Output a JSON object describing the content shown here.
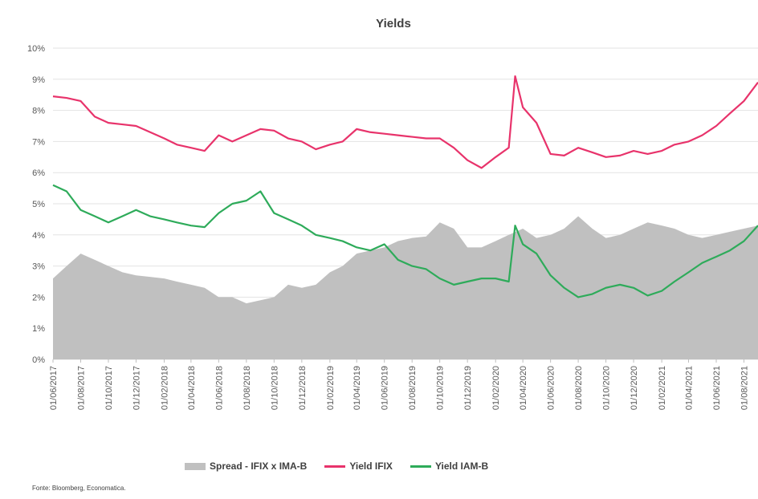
{
  "chart_data": {
    "type": "line",
    "title": "Yields",
    "ylim": [
      0,
      10
    ],
    "y_ticks": [
      "10%",
      "9%",
      "8%",
      "7%",
      "6%",
      "5%",
      "4%",
      "3%",
      "2%",
      "1%",
      "0%"
    ],
    "x_range": [
      "01/06/2017",
      "01/09/2021"
    ],
    "x_tick_labels": [
      "01/06/2017",
      "01/08/2017",
      "01/10/2017",
      "01/12/2017",
      "01/02/2018",
      "01/04/2018",
      "01/06/2018",
      "01/08/2018",
      "01/10/2018",
      "01/12/2018",
      "01/02/2019",
      "01/04/2019",
      "01/06/2019",
      "01/08/2019",
      "01/10/2019",
      "01/12/2019",
      "01/02/2020",
      "01/04/2020",
      "01/06/2020",
      "01/08/2020",
      "01/10/2020",
      "01/12/2020",
      "01/02/2021",
      "01/04/2021",
      "01/06/2021",
      "01/08/2021"
    ],
    "grid": true,
    "legend_position": "bottom",
    "series": [
      {
        "name": "Spread - IFIX x IMA-B",
        "kind": "area",
        "color": "#c0c0c0",
        "points": [
          [
            "01/06/2017",
            2.6
          ],
          [
            "01/07/2017",
            3.0
          ],
          [
            "01/08/2017",
            3.4
          ],
          [
            "01/09/2017",
            3.2
          ],
          [
            "01/10/2017",
            3.0
          ],
          [
            "01/11/2017",
            2.8
          ],
          [
            "01/12/2017",
            2.7
          ],
          [
            "01/01/2018",
            2.65
          ],
          [
            "01/02/2018",
            2.6
          ],
          [
            "01/03/2018",
            2.5
          ],
          [
            "01/04/2018",
            2.4
          ],
          [
            "01/05/2018",
            2.3
          ],
          [
            "01/06/2018",
            2.0
          ],
          [
            "01/07/2018",
            2.0
          ],
          [
            "01/08/2018",
            1.8
          ],
          [
            "01/09/2018",
            1.9
          ],
          [
            "01/10/2018",
            2.0
          ],
          [
            "01/11/2018",
            2.4
          ],
          [
            "01/12/2018",
            2.3
          ],
          [
            "01/01/2019",
            2.4
          ],
          [
            "01/02/2019",
            2.8
          ],
          [
            "01/03/2019",
            3.0
          ],
          [
            "01/04/2019",
            3.4
          ],
          [
            "01/05/2019",
            3.5
          ],
          [
            "01/06/2019",
            3.6
          ],
          [
            "01/07/2019",
            3.8
          ],
          [
            "01/08/2019",
            3.9
          ],
          [
            "01/09/2019",
            3.95
          ],
          [
            "01/10/2019",
            4.4
          ],
          [
            "01/11/2019",
            4.2
          ],
          [
            "01/12/2019",
            3.6
          ],
          [
            "01/01/2020",
            3.6
          ],
          [
            "01/02/2020",
            3.8
          ],
          [
            "01/03/2020",
            4.0
          ],
          [
            "01/04/2020",
            4.2
          ],
          [
            "01/05/2020",
            3.9
          ],
          [
            "01/06/2020",
            4.0
          ],
          [
            "01/07/2020",
            4.2
          ],
          [
            "01/08/2020",
            4.6
          ],
          [
            "01/09/2020",
            4.2
          ],
          [
            "01/10/2020",
            3.9
          ],
          [
            "01/11/2020",
            4.0
          ],
          [
            "01/12/2020",
            4.2
          ],
          [
            "01/01/2021",
            4.4
          ],
          [
            "01/02/2021",
            4.3
          ],
          [
            "01/03/2021",
            4.2
          ],
          [
            "01/04/2021",
            4.0
          ],
          [
            "01/05/2021",
            3.9
          ],
          [
            "01/06/2021",
            4.0
          ],
          [
            "01/07/2021",
            4.1
          ],
          [
            "01/08/2021",
            4.2
          ],
          [
            "01/09/2021",
            4.3
          ]
        ]
      },
      {
        "name": "Yield IFIX",
        "kind": "line",
        "color": "#e8336b",
        "points": [
          [
            "01/06/2017",
            8.45
          ],
          [
            "01/07/2017",
            8.4
          ],
          [
            "01/08/2017",
            8.3
          ],
          [
            "01/09/2017",
            7.8
          ],
          [
            "01/10/2017",
            7.6
          ],
          [
            "01/11/2017",
            7.55
          ],
          [
            "01/12/2017",
            7.5
          ],
          [
            "01/01/2018",
            7.3
          ],
          [
            "01/02/2018",
            7.1
          ],
          [
            "01/03/2018",
            6.9
          ],
          [
            "01/04/2018",
            6.8
          ],
          [
            "01/05/2018",
            6.7
          ],
          [
            "01/06/2018",
            7.2
          ],
          [
            "01/07/2018",
            7.0
          ],
          [
            "01/08/2018",
            7.2
          ],
          [
            "01/09/2018",
            7.4
          ],
          [
            "01/10/2018",
            7.35
          ],
          [
            "01/11/2018",
            7.1
          ],
          [
            "01/12/2018",
            7.0
          ],
          [
            "01/01/2019",
            6.75
          ],
          [
            "01/02/2019",
            6.9
          ],
          [
            "01/03/2019",
            7.0
          ],
          [
            "01/04/2019",
            7.4
          ],
          [
            "01/05/2019",
            7.3
          ],
          [
            "01/06/2019",
            7.25
          ],
          [
            "01/07/2019",
            7.2
          ],
          [
            "01/08/2019",
            7.15
          ],
          [
            "01/09/2019",
            7.1
          ],
          [
            "01/10/2019",
            7.1
          ],
          [
            "01/11/2019",
            6.8
          ],
          [
            "01/12/2019",
            6.4
          ],
          [
            "01/01/2020",
            6.15
          ],
          [
            "01/02/2020",
            6.5
          ],
          [
            "01/03/2020",
            6.8
          ],
          [
            "15/03/2020",
            9.1
          ],
          [
            "01/04/2020",
            8.1
          ],
          [
            "01/05/2020",
            7.6
          ],
          [
            "01/06/2020",
            6.6
          ],
          [
            "01/07/2020",
            6.55
          ],
          [
            "01/08/2020",
            6.8
          ],
          [
            "01/09/2020",
            6.65
          ],
          [
            "01/10/2020",
            6.5
          ],
          [
            "01/11/2020",
            6.55
          ],
          [
            "01/12/2020",
            6.7
          ],
          [
            "01/01/2021",
            6.6
          ],
          [
            "01/02/2021",
            6.7
          ],
          [
            "01/03/2021",
            6.9
          ],
          [
            "01/04/2021",
            7.0
          ],
          [
            "01/05/2021",
            7.2
          ],
          [
            "01/06/2021",
            7.5
          ],
          [
            "01/07/2021",
            7.9
          ],
          [
            "01/08/2021",
            8.3
          ],
          [
            "01/09/2021",
            8.9
          ]
        ]
      },
      {
        "name": "Yield IAM-B",
        "kind": "line",
        "color": "#2eab5a",
        "points": [
          [
            "01/06/2017",
            5.6
          ],
          [
            "01/07/2017",
            5.4
          ],
          [
            "01/08/2017",
            4.8
          ],
          [
            "01/09/2017",
            4.6
          ],
          [
            "01/10/2017",
            4.4
          ],
          [
            "01/11/2017",
            4.6
          ],
          [
            "01/12/2017",
            4.8
          ],
          [
            "01/01/2018",
            4.6
          ],
          [
            "01/02/2018",
            4.5
          ],
          [
            "01/03/2018",
            4.4
          ],
          [
            "01/04/2018",
            4.3
          ],
          [
            "01/05/2018",
            4.25
          ],
          [
            "01/06/2018",
            4.7
          ],
          [
            "01/07/2018",
            5.0
          ],
          [
            "01/08/2018",
            5.1
          ],
          [
            "01/09/2018",
            5.4
          ],
          [
            "01/10/2018",
            4.7
          ],
          [
            "01/11/2018",
            4.5
          ],
          [
            "01/12/2018",
            4.3
          ],
          [
            "01/01/2019",
            4.0
          ],
          [
            "01/02/2019",
            3.9
          ],
          [
            "01/03/2019",
            3.8
          ],
          [
            "01/04/2019",
            3.6
          ],
          [
            "01/05/2019",
            3.5
          ],
          [
            "01/06/2019",
            3.7
          ],
          [
            "01/07/2019",
            3.2
          ],
          [
            "01/08/2019",
            3.0
          ],
          [
            "01/09/2019",
            2.9
          ],
          [
            "01/10/2019",
            2.6
          ],
          [
            "01/11/2019",
            2.4
          ],
          [
            "01/12/2019",
            2.5
          ],
          [
            "01/01/2020",
            2.6
          ],
          [
            "01/02/2020",
            2.6
          ],
          [
            "01/03/2020",
            2.5
          ],
          [
            "15/03/2020",
            4.3
          ],
          [
            "01/04/2020",
            3.7
          ],
          [
            "01/05/2020",
            3.4
          ],
          [
            "01/06/2020",
            2.7
          ],
          [
            "01/07/2020",
            2.3
          ],
          [
            "01/08/2020",
            2.0
          ],
          [
            "01/09/2020",
            2.1
          ],
          [
            "01/10/2020",
            2.3
          ],
          [
            "01/11/2020",
            2.4
          ],
          [
            "01/12/2020",
            2.3
          ],
          [
            "01/01/2021",
            2.05
          ],
          [
            "01/02/2021",
            2.2
          ],
          [
            "01/03/2021",
            2.5
          ],
          [
            "01/04/2021",
            2.8
          ],
          [
            "01/05/2021",
            3.1
          ],
          [
            "01/06/2021",
            3.3
          ],
          [
            "01/07/2021",
            3.5
          ],
          [
            "01/08/2021",
            3.8
          ],
          [
            "01/09/2021",
            4.3
          ]
        ]
      }
    ]
  },
  "legend": {
    "spread": "Spread - IFIX x IMA-B",
    "ifix": "Yield IFIX",
    "iamb": "Yield IAM-B"
  },
  "source": "Fonte: Bloomberg, Economatica."
}
